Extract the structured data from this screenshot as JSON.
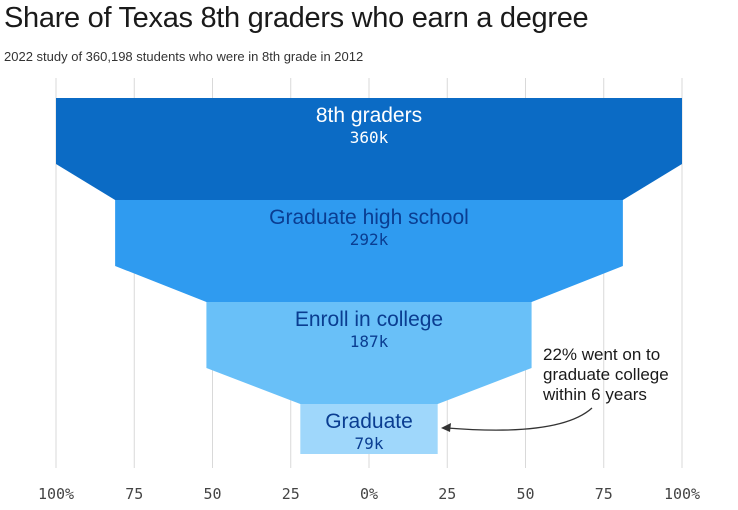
{
  "header": {
    "title": "Share of Texas 8th graders who earn a degree",
    "subtitle": "2022 study of 360,198 students who were in 8th grade in 2012"
  },
  "colors": {
    "stage_fills": [
      "#0b6bc5",
      "#2f9bf0",
      "#69c0f8",
      "#9fd7fb"
    ],
    "stage_text": [
      "#ffffff",
      "#0a3d91",
      "#0a3d91",
      "#0a3d91"
    ],
    "grid": "#d9d9d9",
    "annotation_arrow": "#333333"
  },
  "chart_data": {
    "type": "funnel",
    "categories": [
      "8th graders",
      "Graduate high school",
      "Enroll in college",
      "Graduate"
    ],
    "values": [
      360,
      292,
      187,
      79
    ],
    "value_labels": [
      "360k",
      "292k",
      "187k",
      "79k"
    ],
    "units": "thousands of students",
    "x_axis": {
      "ticks": [
        -100,
        -75,
        -50,
        -25,
        0,
        25,
        50,
        75,
        100
      ],
      "tick_labels": [
        "100%",
        "75",
        "50",
        "25",
        "0%",
        "25",
        "50",
        "75",
        "100%"
      ],
      "range": [
        -100,
        100
      ]
    },
    "grid": true,
    "annotation": {
      "lines": [
        "22% went on to",
        "graduate college",
        "within 6 years"
      ],
      "points_to": "Graduate"
    }
  }
}
